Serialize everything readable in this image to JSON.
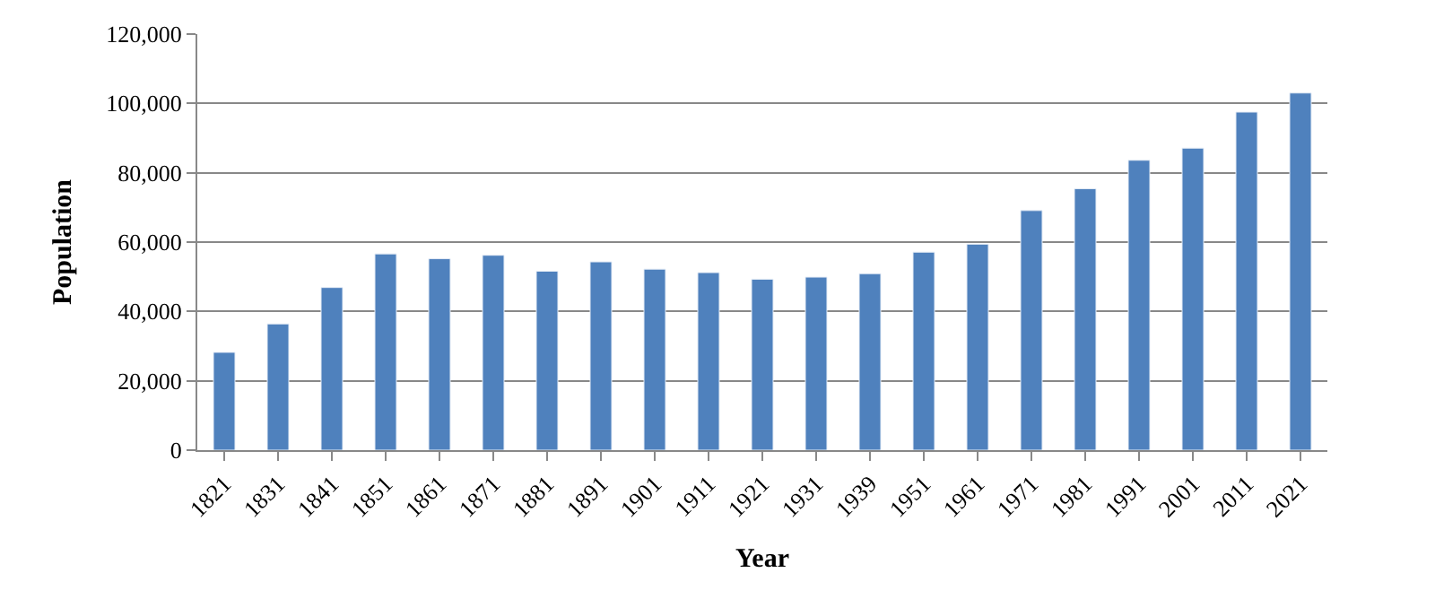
{
  "chart_data": {
    "type": "bar",
    "xlabel": "Year",
    "ylabel": "Population",
    "categories": [
      "1821",
      "1831",
      "1841",
      "1851",
      "1861",
      "1871",
      "1881",
      "1891",
      "1901",
      "1911",
      "1921",
      "1931",
      "1939",
      "1951",
      "1961",
      "1971",
      "1981",
      "1991",
      "2001",
      "2011",
      "2021"
    ],
    "values": [
      28200,
      36400,
      46900,
      56600,
      55200,
      56200,
      51600,
      54300,
      52200,
      51200,
      49300,
      49900,
      50900,
      57100,
      59400,
      69100,
      75400,
      83600,
      87100,
      97500,
      103000
    ],
    "color": "#4f81bd",
    "ylim": [
      0,
      120000
    ],
    "yticks": [
      {
        "value": 0,
        "label": "0"
      },
      {
        "value": 20000,
        "label": "20,000"
      },
      {
        "value": 40000,
        "label": "40,000"
      },
      {
        "value": 60000,
        "label": "60,000"
      },
      {
        "value": 80000,
        "label": "80,000"
      },
      {
        "value": 100000,
        "label": "100,000"
      },
      {
        "value": 120000,
        "label": "120,000"
      }
    ],
    "grid": "y"
  }
}
